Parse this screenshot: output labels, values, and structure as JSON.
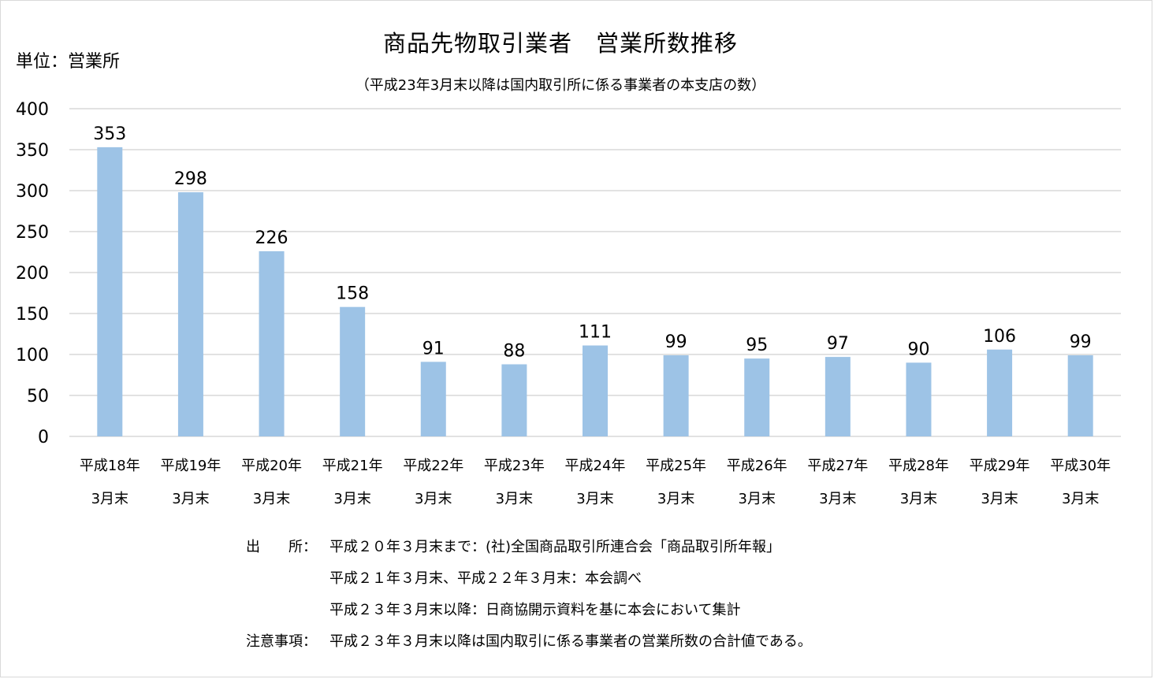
{
  "chart_data": {
    "type": "bar",
    "title": "商品先物取引業者　営業所数推移",
    "subtitle": "（平成23年3月末以降は国内取引所に係る事業者の本支店の数）",
    "unit_label": "単位：営業所",
    "categories": [
      {
        "line1": "平成18年",
        "line2": "3月末"
      },
      {
        "line1": "平成19年",
        "line2": "3月末"
      },
      {
        "line1": "平成20年",
        "line2": "3月末"
      },
      {
        "line1": "平成21年",
        "line2": "3月末"
      },
      {
        "line1": "平成22年",
        "line2": "3月末"
      },
      {
        "line1": "平成23年",
        "line2": "3月末"
      },
      {
        "line1": "平成24年",
        "line2": "3月末"
      },
      {
        "line1": "平成25年",
        "line2": "3月末"
      },
      {
        "line1": "平成26年",
        "line2": "3月末"
      },
      {
        "line1": "平成27年",
        "line2": "3月末"
      },
      {
        "line1": "平成28年",
        "line2": "3月末"
      },
      {
        "line1": "平成29年",
        "line2": "3月末"
      },
      {
        "line1": "平成30年",
        "line2": "3月末"
      }
    ],
    "values": [
      353,
      298,
      226,
      158,
      91,
      88,
      111,
      99,
      95,
      97,
      90,
      106,
      99
    ],
    "ylim": [
      0,
      400
    ],
    "yticks": [
      0,
      50,
      100,
      150,
      200,
      250,
      300,
      350,
      400
    ],
    "grid": true,
    "bar_color": "#9dc3e6",
    "grid_color": "#d9d9d9"
  },
  "notes": {
    "source_label": "出　　所：",
    "source_line1": "平成２０年３月末まで：(社)全国商品取引所連合会「商品取引所年報」",
    "source_line2": "平成２１年３月末、平成２２年３月末：本会調べ",
    "source_line3": "平成２３年３月末以降：日商協開示資料を基に本会において集計",
    "caution_label": "注意事項：",
    "caution_text": "平成２３年３月末以降は国内取引に係る事業者の営業所数の合計値である。"
  }
}
